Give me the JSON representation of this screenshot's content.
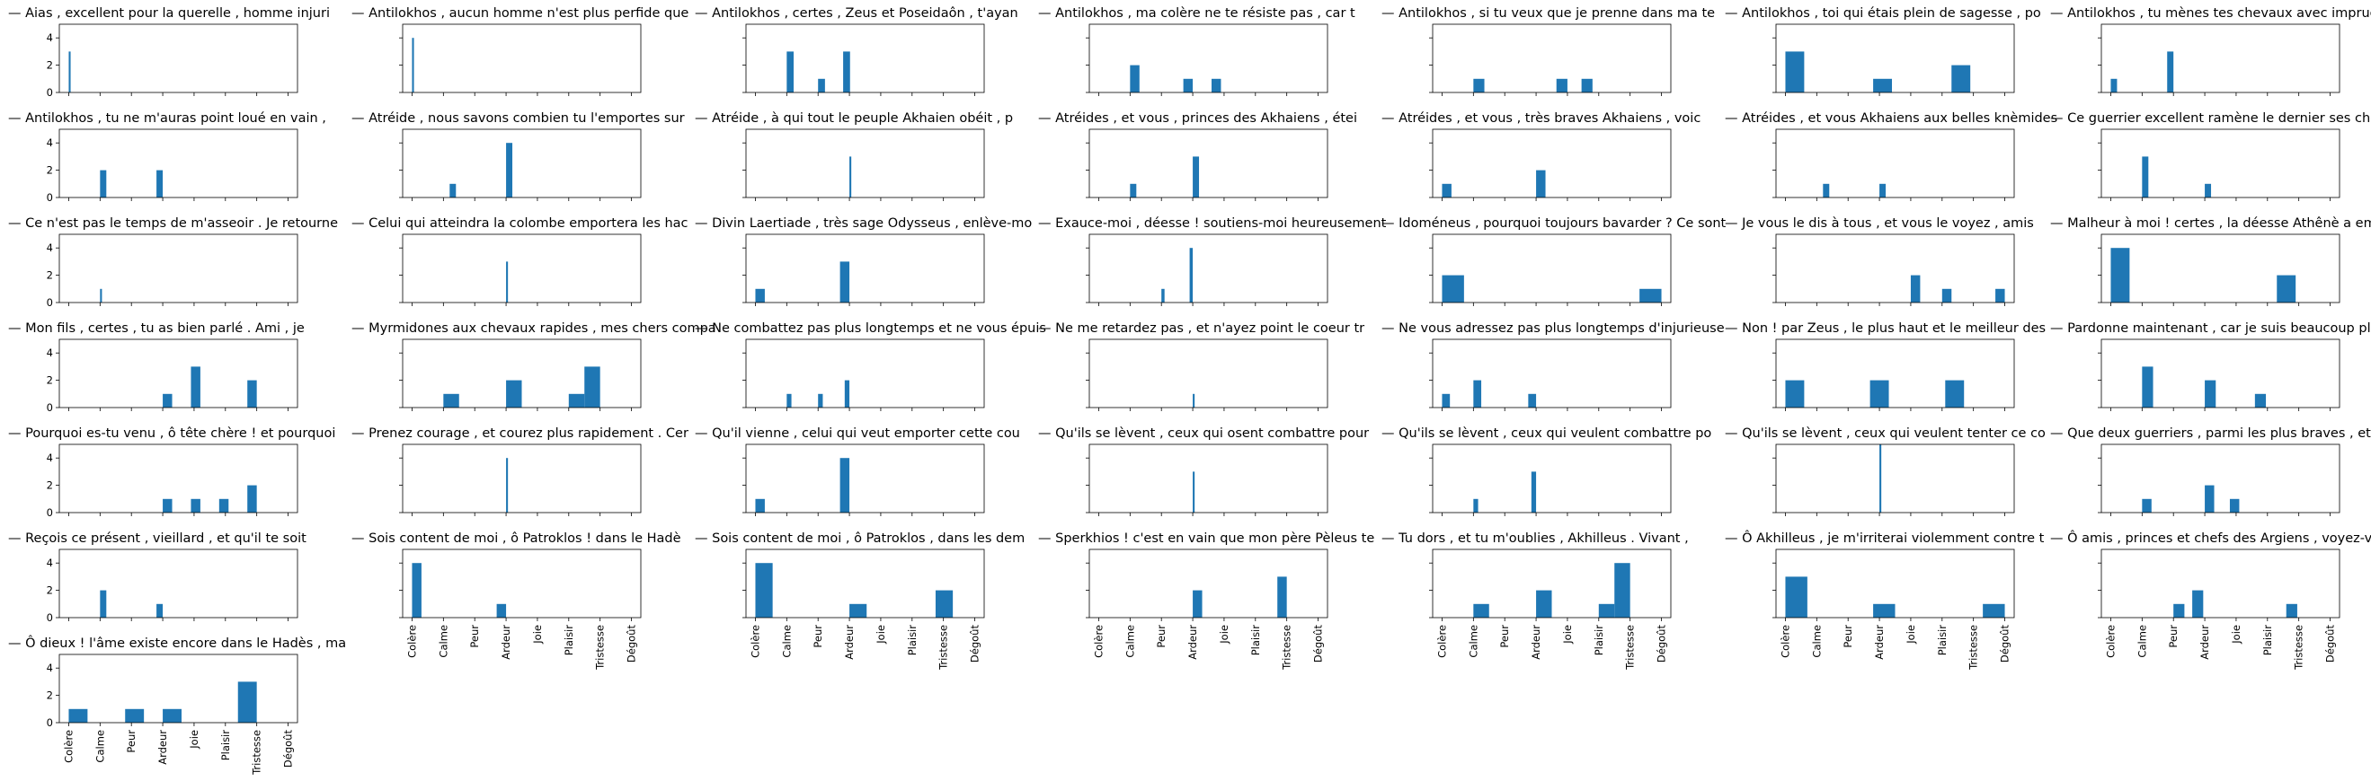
{
  "x_categories": [
    "Colère",
    "Calme",
    "Peur",
    "Ardeur",
    "Joie",
    "Plaisir",
    "Tristesse",
    "Dégoût"
  ],
  "y_tick_labels": [
    "0",
    "2",
    "4"
  ],
  "bar_color": "#1f77b4",
  "chart_data": {
    "type": "bar",
    "layout": "small multiples grid, 7 columns, shared x and y axes",
    "ylim": [
      0,
      5
    ],
    "panels": [
      {
        "title": "— Aias , excellent pour la querelle , homme injuri",
        "bars": [
          {
            "x": 0.0,
            "w": 0.06,
            "y": 3
          }
        ]
      },
      {
        "title": "— Antilokhos , aucun homme n'est plus perfide que",
        "bars": [
          {
            "x": 0.0,
            "w": 0.06,
            "y": 4
          }
        ]
      },
      {
        "title": "— Antilokhos , certes , Zeus et Poseidaôn , t'ayan",
        "bars": [
          {
            "x": 1.0,
            "w": 0.22,
            "y": 3
          },
          {
            "x": 2.0,
            "w": 0.22,
            "y": 1
          },
          {
            "x": 2.8,
            "w": 0.22,
            "y": 3
          }
        ]
      },
      {
        "title": "— Antilokhos , ma colère ne te résiste pas , car t",
        "bars": [
          {
            "x": 1.0,
            "w": 0.3,
            "y": 2
          },
          {
            "x": 2.7,
            "w": 0.3,
            "y": 1
          },
          {
            "x": 3.6,
            "w": 0.3,
            "y": 1
          }
        ]
      },
      {
        "title": "— Antilokhos , si tu veux que je prenne dans ma te",
        "bars": [
          {
            "x": 1.0,
            "w": 0.35,
            "y": 1
          },
          {
            "x": 3.65,
            "w": 0.35,
            "y": 1
          },
          {
            "x": 4.45,
            "w": 0.35,
            "y": 1
          }
        ]
      },
      {
        "title": "— Antilokhos , toi qui étais plein de sagesse , po",
        "bars": [
          {
            "x": 0.0,
            "w": 0.6,
            "y": 3
          },
          {
            "x": 2.8,
            "w": 0.6,
            "y": 1
          },
          {
            "x": 5.3,
            "w": 0.6,
            "y": 2
          }
        ]
      },
      {
        "title": "— Antilokhos , tu mènes tes chevaux avec imprudenc",
        "bars": [
          {
            "x": 0.0,
            "w": 0.2,
            "y": 1
          },
          {
            "x": 1.8,
            "w": 0.2,
            "y": 3
          }
        ]
      },
      {
        "title": "— Antilokhos , tu ne m'auras point loué en vain ,",
        "bars": [
          {
            "x": 1.0,
            "w": 0.2,
            "y": 2
          },
          {
            "x": 2.8,
            "w": 0.2,
            "y": 2
          }
        ]
      },
      {
        "title": "— Atréide , nous savons combien tu l'emportes sur",
        "bars": [
          {
            "x": 1.2,
            "w": 0.2,
            "y": 1
          },
          {
            "x": 3.0,
            "w": 0.2,
            "y": 4
          }
        ]
      },
      {
        "title": "— Atréide , à qui tout le peuple Akhaien obéit , p",
        "bars": [
          {
            "x": 3.0,
            "w": 0.06,
            "y": 3
          }
        ]
      },
      {
        "title": "— Atréides , et vous , princes des Akhaiens , étei",
        "bars": [
          {
            "x": 1.0,
            "w": 0.2,
            "y": 1
          },
          {
            "x": 3.0,
            "w": 0.2,
            "y": 3
          }
        ]
      },
      {
        "title": "— Atréides , et vous , très braves Akhaiens , voic",
        "bars": [
          {
            "x": 0.0,
            "w": 0.3,
            "y": 1
          },
          {
            "x": 3.0,
            "w": 0.3,
            "y": 2
          }
        ]
      },
      {
        "title": "— Atréides , et vous Akhaiens aux belles knèmides",
        "bars": [
          {
            "x": 1.2,
            "w": 0.2,
            "y": 1
          },
          {
            "x": 3.0,
            "w": 0.2,
            "y": 1
          }
        ]
      },
      {
        "title": "— Ce guerrier excellent ramène le dernier ses chev",
        "bars": [
          {
            "x": 1.0,
            "w": 0.2,
            "y": 3
          },
          {
            "x": 3.0,
            "w": 0.2,
            "y": 1
          }
        ]
      },
      {
        "title": "— Ce n'est pas le temps de m'asseoir . Je retourne",
        "bars": [
          {
            "x": 1.0,
            "w": 0.06,
            "y": 1
          }
        ]
      },
      {
        "title": "— Celui qui atteindra la colombe emportera les hac",
        "bars": [
          {
            "x": 3.0,
            "w": 0.06,
            "y": 3
          }
        ]
      },
      {
        "title": "— Divin Laertiade , très sage Odysseus , enlève-mo",
        "bars": [
          {
            "x": 0.0,
            "w": 0.3,
            "y": 1
          },
          {
            "x": 2.7,
            "w": 0.3,
            "y": 3
          }
        ]
      },
      {
        "title": "— Exauce-moi , déesse ! soutiens-moi heureusement",
        "bars": [
          {
            "x": 2.0,
            "w": 0.1,
            "y": 1
          },
          {
            "x": 2.9,
            "w": 0.1,
            "y": 4
          }
        ]
      },
      {
        "title": "— Idoméneus , pourquoi toujours bavarder ? Ce sont",
        "bars": [
          {
            "x": 0.0,
            "w": 0.7,
            "y": 2
          },
          {
            "x": 6.3,
            "w": 0.7,
            "y": 1
          }
        ]
      },
      {
        "title": "— Je vous le dis à tous , et vous le voyez , amis",
        "bars": [
          {
            "x": 4.0,
            "w": 0.3,
            "y": 2
          },
          {
            "x": 5.0,
            "w": 0.3,
            "y": 1
          },
          {
            "x": 6.7,
            "w": 0.3,
            "y": 1
          }
        ]
      },
      {
        "title": "— Malheur à moi ! certes , la déesse Athênè a emba",
        "bars": [
          {
            "x": 0.0,
            "w": 0.6,
            "y": 4
          },
          {
            "x": 5.3,
            "w": 0.6,
            "y": 2
          }
        ]
      },
      {
        "title": "— Mon fils , certes , tu as bien parlé . Ami , je",
        "bars": [
          {
            "x": 3.0,
            "w": 0.3,
            "y": 1
          },
          {
            "x": 3.9,
            "w": 0.3,
            "y": 3
          },
          {
            "x": 5.7,
            "w": 0.3,
            "y": 2
          }
        ]
      },
      {
        "title": "— Myrmidones aux chevaux rapides , mes chers compa",
        "bars": [
          {
            "x": 1.0,
            "w": 0.5,
            "y": 1
          },
          {
            "x": 3.0,
            "w": 0.5,
            "y": 2
          },
          {
            "x": 5.0,
            "w": 0.5,
            "y": 1
          },
          {
            "x": 5.5,
            "w": 0.5,
            "y": 3
          }
        ]
      },
      {
        "title": "— Ne combattez pas plus longtemps et ne vous épuis",
        "bars": [
          {
            "x": 1.0,
            "w": 0.15,
            "y": 1
          },
          {
            "x": 2.0,
            "w": 0.15,
            "y": 1
          },
          {
            "x": 2.85,
            "w": 0.15,
            "y": 2
          }
        ]
      },
      {
        "title": "— Ne me retardez pas , et n'ayez point le coeur tr",
        "bars": [
          {
            "x": 3.0,
            "w": 0.06,
            "y": 1
          }
        ]
      },
      {
        "title": "— Ne vous adressez pas plus longtemps d'injurieuse",
        "bars": [
          {
            "x": 0.0,
            "w": 0.25,
            "y": 1
          },
          {
            "x": 1.0,
            "w": 0.25,
            "y": 2
          },
          {
            "x": 2.75,
            "w": 0.25,
            "y": 1
          }
        ]
      },
      {
        "title": "— Non ! par Zeus , le plus haut et le meilleur des",
        "bars": [
          {
            "x": 0.0,
            "w": 0.6,
            "y": 2
          },
          {
            "x": 2.7,
            "w": 0.6,
            "y": 2
          },
          {
            "x": 5.1,
            "w": 0.6,
            "y": 2
          }
        ]
      },
      {
        "title": "— Pardonne maintenant , car je suis beaucoup plus",
        "bars": [
          {
            "x": 1.0,
            "w": 0.35,
            "y": 3
          },
          {
            "x": 3.0,
            "w": 0.35,
            "y": 2
          },
          {
            "x": 4.6,
            "w": 0.35,
            "y": 1
          }
        ]
      },
      {
        "title": "— Pourquoi es-tu venu , ô tête chère ! et pourquoi",
        "bars": [
          {
            "x": 3.0,
            "w": 0.3,
            "y": 1
          },
          {
            "x": 3.9,
            "w": 0.3,
            "y": 1
          },
          {
            "x": 4.8,
            "w": 0.3,
            "y": 1
          },
          {
            "x": 5.7,
            "w": 0.3,
            "y": 2
          }
        ]
      },
      {
        "title": "— Prenez courage , et courez plus rapidement . Cer",
        "bars": [
          {
            "x": 3.0,
            "w": 0.06,
            "y": 4
          }
        ]
      },
      {
        "title": "— Qu'il vienne , celui qui veut emporter cette cou",
        "bars": [
          {
            "x": 0.0,
            "w": 0.3,
            "y": 1
          },
          {
            "x": 2.7,
            "w": 0.3,
            "y": 4
          }
        ]
      },
      {
        "title": "— Qu'ils se lèvent , ceux qui osent combattre pour",
        "bars": [
          {
            "x": 3.0,
            "w": 0.06,
            "y": 3
          }
        ]
      },
      {
        "title": "— Qu'ils se lèvent , ceux qui veulent combattre po",
        "bars": [
          {
            "x": 1.0,
            "w": 0.15,
            "y": 1
          },
          {
            "x": 2.85,
            "w": 0.15,
            "y": 3
          }
        ]
      },
      {
        "title": "— Qu'ils se lèvent , ceux qui veulent tenter ce co",
        "bars": [
          {
            "x": 3.0,
            "w": 0.06,
            "y": 5
          }
        ]
      },
      {
        "title": "— Que deux guerriers , parmi les plus braves , et",
        "bars": [
          {
            "x": 1.0,
            "w": 0.3,
            "y": 1
          },
          {
            "x": 3.0,
            "w": 0.3,
            "y": 2
          },
          {
            "x": 3.8,
            "w": 0.3,
            "y": 1
          }
        ]
      },
      {
        "title": "— Reçois ce présent , vieillard , et qu'il te soit",
        "bars": [
          {
            "x": 1.0,
            "w": 0.2,
            "y": 2
          },
          {
            "x": 2.8,
            "w": 0.2,
            "y": 1
          }
        ]
      },
      {
        "title": "— Sois content de moi , ô Patroklos ! dans le Hadè",
        "bars": [
          {
            "x": 0.0,
            "w": 0.3,
            "y": 4
          },
          {
            "x": 2.7,
            "w": 0.3,
            "y": 1
          }
        ]
      },
      {
        "title": "— Sois content de moi , ô Patroklos , dans les dem",
        "bars": [
          {
            "x": 0.0,
            "w": 0.55,
            "y": 4
          },
          {
            "x": 3.0,
            "w": 0.55,
            "y": 1
          },
          {
            "x": 5.75,
            "w": 0.55,
            "y": 2
          }
        ]
      },
      {
        "title": "— Sperkhios ! c'est en vain que mon père Pèleus te",
        "bars": [
          {
            "x": 3.0,
            "w": 0.3,
            "y": 2
          },
          {
            "x": 5.7,
            "w": 0.3,
            "y": 3
          }
        ]
      },
      {
        "title": "— Tu dors , et tu m'oublies , Akhilleus . Vivant ,",
        "bars": [
          {
            "x": 1.0,
            "w": 0.5,
            "y": 1
          },
          {
            "x": 3.0,
            "w": 0.5,
            "y": 2
          },
          {
            "x": 5.0,
            "w": 0.5,
            "y": 1
          },
          {
            "x": 5.5,
            "w": 0.5,
            "y": 4
          }
        ]
      },
      {
        "title": "— Ô Akhilleus , je m'irriterai violemment contre t",
        "bars": [
          {
            "x": 0.0,
            "w": 0.7,
            "y": 3
          },
          {
            "x": 2.8,
            "w": 0.7,
            "y": 1
          },
          {
            "x": 6.3,
            "w": 0.7,
            "y": 1
          }
        ]
      },
      {
        "title": "— Ô amis , princes et chefs des Argiens , voyez-vo",
        "bars": [
          {
            "x": 2.0,
            "w": 0.35,
            "y": 1
          },
          {
            "x": 2.6,
            "w": 0.35,
            "y": 2
          },
          {
            "x": 5.6,
            "w": 0.35,
            "y": 1
          }
        ]
      },
      {
        "title": "— Ô dieux ! l'âme existe encore dans le Hadès , ma",
        "bars": [
          {
            "x": 0.0,
            "w": 0.6,
            "y": 1
          },
          {
            "x": 1.8,
            "w": 0.6,
            "y": 1
          },
          {
            "x": 3.0,
            "w": 0.6,
            "y": 1
          },
          {
            "x": 5.4,
            "w": 0.6,
            "y": 3
          }
        ]
      }
    ]
  }
}
